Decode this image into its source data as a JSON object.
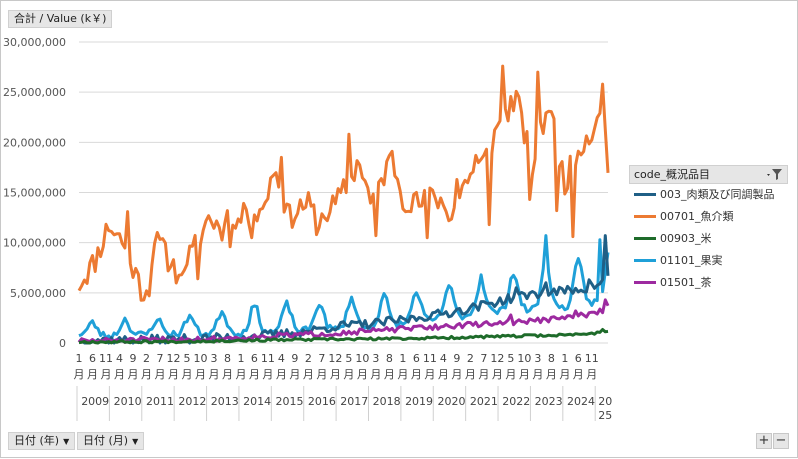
{
  "value_field": "合計 / Value (k￥)",
  "row_fields": [
    {
      "label": "日付 (年)"
    },
    {
      "label": "日付 (月)"
    }
  ],
  "legend": {
    "title": "code_概況品目",
    "items": [
      {
        "name": "003_肉類及び同調製品",
        "color": "#1f5f86"
      },
      {
        "name": "00701_魚介類",
        "color": "#ec7a32"
      },
      {
        "name": "00903_米",
        "color": "#1e6b2a"
      },
      {
        "name": "01101_果実",
        "color": "#1fa0d8"
      },
      {
        "name": "01501_茶",
        "color": "#9d2aa0"
      }
    ]
  },
  "zoom": {
    "plus": "+",
    "minus": "−"
  },
  "chart_data": {
    "type": "line",
    "ylim": [
      0,
      30000000
    ],
    "yticks": [
      "0",
      "5,000,000",
      "10,000,000",
      "15,000,000",
      "20,000,000",
      "25,000,000",
      "30,000,000"
    ],
    "month_unit": "月",
    "month_ticks": [
      "1",
      "6",
      "11",
      "4",
      "9",
      "2",
      "7",
      "12",
      "5",
      "10",
      "3",
      "8",
      "1",
      "6",
      "11",
      "4",
      "9",
      "2",
      "7",
      "12",
      "5",
      "10",
      "3",
      "8",
      "1",
      "6",
      "11",
      "4",
      "9",
      "2",
      "7",
      "12",
      "5",
      "10",
      "3",
      "8",
      "1",
      "6",
      "11"
    ],
    "years": [
      "2009",
      "2010",
      "2011",
      "2012",
      "2013",
      "2014",
      "2015",
      "2016",
      "2017",
      "2018",
      "2019",
      "2020",
      "2021",
      "2022",
      "2023",
      "2024"
    ],
    "last_year_label": [
      "20",
      "25"
    ],
    "series": [
      {
        "name": "00701_魚介類",
        "anchors": [
          [
            0,
            5900000
          ],
          [
            6,
            8200000
          ],
          [
            11,
            11800000
          ],
          [
            16,
            10200000
          ],
          [
            24,
            4800000
          ],
          [
            28,
            10300000
          ],
          [
            36,
            7200000
          ],
          [
            42,
            9000000
          ],
          [
            48,
            12500000
          ],
          [
            56,
            10800000
          ],
          [
            60,
            12600000
          ],
          [
            68,
            12800000
          ],
          [
            72,
            17500000
          ],
          [
            78,
            12500000
          ],
          [
            84,
            14000000
          ],
          [
            90,
            12500000
          ],
          [
            96,
            14200000
          ],
          [
            104,
            18200000
          ],
          [
            108,
            14000000
          ],
          [
            116,
            18500000
          ],
          [
            120,
            14500000
          ],
          [
            126,
            13800000
          ],
          [
            132,
            14700000
          ],
          [
            138,
            12800000
          ],
          [
            144,
            16600000
          ],
          [
            150,
            18000000
          ],
          [
            156,
            22000000
          ],
          [
            162,
            24500000
          ],
          [
            168,
            17500000
          ],
          [
            174,
            24000000
          ],
          [
            180,
            16000000
          ],
          [
            186,
            20000000
          ],
          [
            190,
            21000000
          ],
          [
            194,
            24800000
          ],
          [
            196,
            17000000
          ]
        ],
        "peaks": [
          [
            18,
            13100000
          ],
          [
            31,
            10400000
          ],
          [
            55,
            13200000
          ],
          [
            62,
            13300000
          ],
          [
            67,
            13300000
          ],
          [
            75,
            18500000
          ],
          [
            100,
            20800000
          ],
          [
            115,
            18700000
          ],
          [
            124,
            14800000
          ],
          [
            140,
            16300000
          ],
          [
            147,
            18700000
          ],
          [
            157,
            27600000
          ],
          [
            170,
            27000000
          ],
          [
            187,
            19100000
          ],
          [
            194,
            25800000
          ]
        ],
        "dips": [
          [
            26,
            4700000
          ],
          [
            38,
            6800000
          ],
          [
            44,
            6400000
          ],
          [
            64,
            10500000
          ],
          [
            88,
            10800000
          ],
          [
            110,
            10700000
          ],
          [
            129,
            10500000
          ],
          [
            152,
            11800000
          ],
          [
            167,
            14300000
          ],
          [
            177,
            13200000
          ],
          [
            183,
            10600000
          ]
        ],
        "noise": 1300000,
        "seed": 11
      },
      {
        "name": "01101_果実",
        "anchors": [
          [
            0,
            900000
          ],
          [
            10,
            700000
          ],
          [
            30,
            900000
          ],
          [
            60,
            1000000
          ],
          [
            90,
            1300000
          ],
          [
            110,
            1600000
          ],
          [
            130,
            2200000
          ],
          [
            150,
            3000000
          ],
          [
            170,
            3400000
          ],
          [
            185,
            3600000
          ],
          [
            196,
            4500000
          ]
        ],
        "seasonal": {
          "amp": [
            1200000,
            1600000,
            1500000,
            1800000,
            2200000,
            2700000,
            2700000,
            2700000,
            3000000,
            3000000,
            3200000,
            3200000,
            3200000,
            3800000,
            4500000,
            4500000,
            5500000
          ],
          "peak": 5,
          "width": 1.6
        },
        "peaks": [
          [
            125,
            5000000
          ],
          [
            149,
            6800000
          ],
          [
            173,
            10700000
          ],
          [
            193,
            10300000
          ]
        ],
        "noise": 350000,
        "seed": 23
      },
      {
        "name": "003_肉類及び同調製品",
        "anchors": [
          [
            0,
            300000
          ],
          [
            20,
            300000
          ],
          [
            40,
            400000
          ],
          [
            60,
            600000
          ],
          [
            80,
            1000000
          ],
          [
            96,
            1700000
          ],
          [
            108,
            1900000
          ],
          [
            120,
            2300000
          ],
          [
            132,
            2800000
          ],
          [
            144,
            3400000
          ],
          [
            156,
            4200000
          ],
          [
            168,
            4900000
          ],
          [
            180,
            5200000
          ],
          [
            190,
            5500000
          ],
          [
            196,
            6500000
          ]
        ],
        "peaks": [
          [
            162,
            5500000
          ],
          [
            173,
            6000000
          ],
          [
            189,
            6300000
          ],
          [
            195,
            10700000
          ]
        ],
        "noise": 450000,
        "seed": 37
      },
      {
        "name": "01501_茶",
        "anchors": [
          [
            0,
            200000
          ],
          [
            24,
            300000
          ],
          [
            48,
            400000
          ],
          [
            72,
            700000
          ],
          [
            96,
            1000000
          ],
          [
            120,
            1400000
          ],
          [
            144,
            1800000
          ],
          [
            156,
            2000000
          ],
          [
            168,
            2200000
          ],
          [
            180,
            2500000
          ],
          [
            192,
            3000000
          ],
          [
            196,
            3500000
          ]
        ],
        "peaks": [
          [
            160,
            2800000
          ],
          [
            184,
            3200000
          ],
          [
            195,
            4300000
          ]
        ],
        "noise": 260000,
        "seed": 51
      },
      {
        "name": "00903_米",
        "anchors": [
          [
            0,
            100000
          ],
          [
            36,
            150000
          ],
          [
            72,
            300000
          ],
          [
            108,
            400000
          ],
          [
            132,
            500000
          ],
          [
            156,
            650000
          ],
          [
            180,
            800000
          ],
          [
            192,
            1000000
          ],
          [
            196,
            1200000
          ]
        ],
        "peaks": [
          [
            194,
            1350000
          ]
        ],
        "noise": 120000,
        "seed": 67
      }
    ],
    "n_points": 197
  }
}
